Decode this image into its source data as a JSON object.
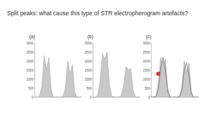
{
  "slide": {
    "title": "Split peaks: what cause this type of STR electropherogram artefacts?"
  },
  "chart_data": [
    {
      "type": "area",
      "title": "(a)",
      "x": [
        0,
        2,
        4,
        6,
        8,
        10,
        12,
        14,
        16,
        18,
        20,
        22,
        24,
        26,
        28,
        30,
        32,
        34,
        36,
        38,
        40
      ],
      "xlim": [
        0,
        40
      ],
      "ylim": [
        0,
        3000
      ],
      "yticks": [
        0,
        500,
        1000,
        1500,
        2000,
        2500,
        3000
      ],
      "grid": false,
      "tick_labels": "y",
      "series": [
        {
          "color": "#c8c8c8",
          "values": [
            0,
            0,
            50,
            600,
            2300,
            1500,
            2200,
            400,
            0,
            0,
            0,
            0,
            50,
            500,
            2000,
            1300,
            1800,
            300,
            0,
            0,
            0
          ]
        }
      ]
    },
    {
      "type": "area",
      "title": "(b)",
      "x": [
        0,
        2,
        4,
        6,
        8,
        10,
        12,
        14,
        16,
        18,
        20,
        22,
        24,
        26,
        28,
        30,
        32,
        34,
        36,
        38,
        40
      ],
      "xlim": [
        0,
        40
      ],
      "ylim": [
        0,
        3000
      ],
      "yticks": [
        0,
        500,
        1000,
        1500,
        2000,
        2500,
        3000
      ],
      "grid": false,
      "tick_labels": "y",
      "series": [
        {
          "color": "#c8c8c8",
          "values": [
            0,
            0,
            100,
            900,
            2400,
            2100,
            2500,
            700,
            50,
            0,
            0,
            0,
            100,
            700,
            1700,
            1500,
            1600,
            400,
            0,
            0,
            0
          ]
        }
      ]
    },
    {
      "type": "area",
      "title": "(c)",
      "x": [
        0,
        2,
        4,
        6,
        8,
        10,
        12,
        14,
        16,
        18,
        20,
        22,
        24,
        26,
        28,
        30,
        32,
        34,
        36,
        38,
        40
      ],
      "xlim": [
        0,
        40
      ],
      "ylim": [
        0,
        3000
      ],
      "yticks": [
        0,
        500,
        1000,
        1500,
        2000,
        2500,
        3000
      ],
      "grid": false,
      "tick_labels": "y",
      "series": [
        {
          "color": "#c8c8c8",
          "values": [
            0,
            0,
            80,
            800,
            2200,
            1900,
            2100,
            500,
            0,
            0,
            0,
            0,
            60,
            600,
            2000,
            1400,
            1900,
            300,
            0,
            0,
            0
          ]
        },
        {
          "type": "line",
          "color": "#555555",
          "values": [
            0,
            0,
            40,
            400,
            1600,
            2200,
            1500,
            300,
            0,
            0,
            0,
            0,
            40,
            400,
            1500,
            1900,
            1200,
            200,
            0,
            0,
            0
          ]
        },
        {
          "type": "scatter",
          "color": "#e8302a",
          "marker": "circle",
          "x": [
            6
          ],
          "values": [
            1300
          ]
        }
      ]
    }
  ]
}
